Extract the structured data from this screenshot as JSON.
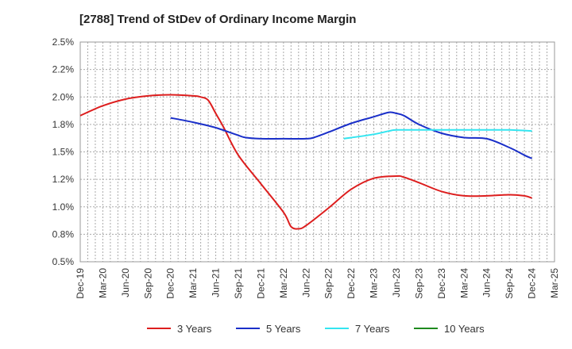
{
  "chart_data": {
    "type": "line",
    "title": "[2788]  Trend of StDev of Ordinary Income Margin",
    "xlabel": "",
    "ylabel": "",
    "x_ticks": [
      "Dec-19",
      "Mar-20",
      "Jun-20",
      "Sep-20",
      "Dec-20",
      "Mar-21",
      "Jun-21",
      "Sep-21",
      "Dec-21",
      "Mar-22",
      "Jun-22",
      "Sep-22",
      "Dec-22",
      "Mar-23",
      "Jun-23",
      "Sep-23",
      "Dec-23",
      "Mar-24",
      "Jun-24",
      "Sep-24",
      "Dec-24",
      "Mar-25"
    ],
    "y_ticks": [
      "0.5%",
      "0.8%",
      "1.0%",
      "1.2%",
      "1.5%",
      "1.8%",
      "2.0%",
      "2.2%",
      "2.5%"
    ],
    "ylim": [
      0.5,
      2.5
    ],
    "grid": true,
    "legend_position": "bottom",
    "series": [
      {
        "name": "3 Years",
        "color": "#dd1e1e",
        "points": [
          [
            "Dec-19",
            1.83
          ],
          [
            "Mar-20",
            1.92
          ],
          [
            "Jun-20",
            1.98
          ],
          [
            "Sep-20",
            2.01
          ],
          [
            "Dec-20",
            2.02
          ],
          [
            "Mar-21",
            2.01
          ],
          [
            "Apr-21",
            2.0
          ],
          [
            "May-21",
            1.97
          ],
          [
            "Jun-21",
            1.85
          ],
          [
            "Jul-21",
            1.73
          ],
          [
            "Sep-21",
            1.47
          ],
          [
            "Dec-21",
            1.21
          ],
          [
            "Mar-22",
            0.95
          ],
          [
            "Apr-22",
            0.82
          ],
          [
            "May-22",
            0.8
          ],
          [
            "Jun-22",
            0.83
          ],
          [
            "Sep-22",
            0.99
          ],
          [
            "Dec-22",
            1.16
          ],
          [
            "Mar-23",
            1.26
          ],
          [
            "Jun-23",
            1.28
          ],
          [
            "Jul-23",
            1.27
          ],
          [
            "Sep-23",
            1.22
          ],
          [
            "Dec-23",
            1.14
          ],
          [
            "Mar-24",
            1.1
          ],
          [
            "Jun-24",
            1.1
          ],
          [
            "Sep-24",
            1.11
          ],
          [
            "Nov-24",
            1.1
          ],
          [
            "Dec-24",
            1.08
          ]
        ]
      },
      {
        "name": "5 Years",
        "color": "#1a2fc9",
        "points": [
          [
            "Dec-20",
            1.81
          ],
          [
            "Mar-21",
            1.77
          ],
          [
            "Jun-21",
            1.72
          ],
          [
            "Sep-21",
            1.65
          ],
          [
            "Oct-21",
            1.63
          ],
          [
            "Dec-21",
            1.62
          ],
          [
            "Mar-22",
            1.62
          ],
          [
            "Jun-22",
            1.62
          ],
          [
            "Jul-22",
            1.63
          ],
          [
            "Sep-22",
            1.68
          ],
          [
            "Dec-22",
            1.76
          ],
          [
            "Mar-23",
            1.82
          ],
          [
            "May-23",
            1.86
          ],
          [
            "Jun-23",
            1.85
          ],
          [
            "Jul-23",
            1.83
          ],
          [
            "Sep-23",
            1.75
          ],
          [
            "Dec-23",
            1.67
          ],
          [
            "Mar-24",
            1.63
          ],
          [
            "Jun-24",
            1.62
          ],
          [
            "Sep-24",
            1.54
          ],
          [
            "Nov-24",
            1.47
          ],
          [
            "Dec-24",
            1.44
          ]
        ]
      },
      {
        "name": "7 Years",
        "color": "#33e5f0",
        "points": [
          [
            "Nov-22",
            1.62
          ],
          [
            "Dec-22",
            1.63
          ],
          [
            "Mar-23",
            1.66
          ],
          [
            "May-23",
            1.69
          ],
          [
            "Jun-23",
            1.7
          ],
          [
            "Sep-23",
            1.7
          ],
          [
            "Dec-23",
            1.7
          ],
          [
            "Mar-24",
            1.7
          ],
          [
            "Jun-24",
            1.7
          ],
          [
            "Sep-24",
            1.7
          ],
          [
            "Dec-24",
            1.69
          ]
        ]
      },
      {
        "name": "10 Years",
        "color": "#1e8a1e",
        "points": []
      }
    ]
  }
}
